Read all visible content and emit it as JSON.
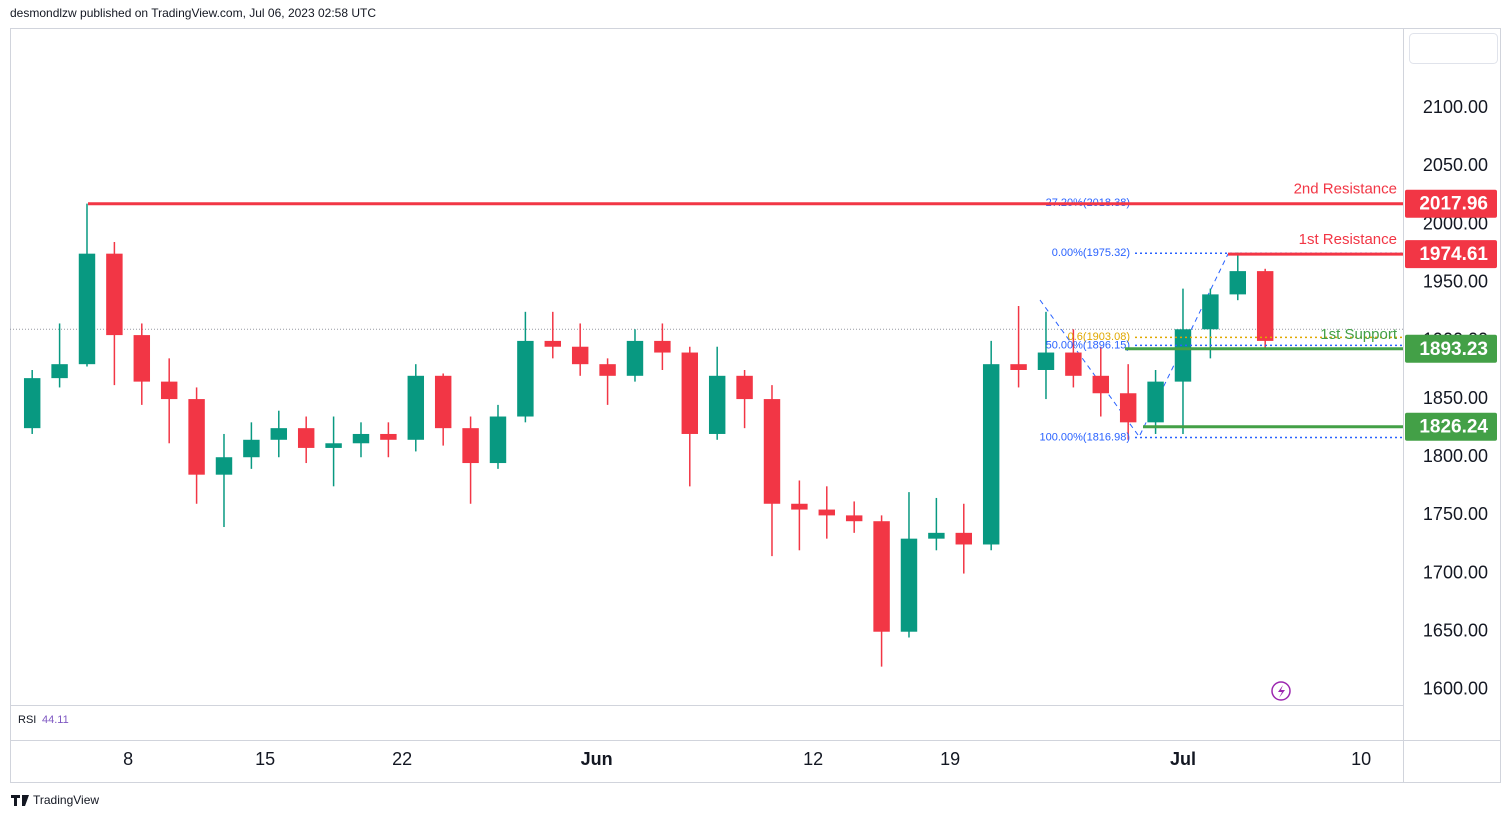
{
  "header": "desmondlzw published on TradingView.com, Jul 06, 2023 02:58 UTC",
  "footer": "TradingView",
  "chart_data": {
    "type": "candlestick",
    "up_color": "#089981",
    "down_color": "#f23645",
    "xlim": [
      -4.31,
      46.53
    ],
    "ylim": [
      1587,
      2169
    ],
    "xticks": [
      {
        "value": 0,
        "label": "8"
      },
      {
        "value": 5,
        "label": "15"
      },
      {
        "value": 10,
        "label": "22"
      },
      {
        "value": 17.1,
        "label": "Jun"
      },
      {
        "value": 25,
        "label": "12"
      },
      {
        "value": 30,
        "label": "19"
      },
      {
        "value": 38.5,
        "label": "Jul"
      },
      {
        "value": 45,
        "label": "10"
      }
    ],
    "yticks": [
      {
        "value": 1600,
        "label": "1600.00"
      },
      {
        "value": 1650,
        "label": "1650.00"
      },
      {
        "value": 1700,
        "label": "1700.00"
      },
      {
        "value": 1750,
        "label": "1750.00"
      },
      {
        "value": 1800,
        "label": "1800.00"
      },
      {
        "value": 1850,
        "label": "1850.00"
      },
      {
        "value": 1900,
        "label": "1900.00"
      },
      {
        "value": 1950,
        "label": "1950.00"
      },
      {
        "value": 2000,
        "label": "2000.00"
      },
      {
        "value": 2050,
        "label": "2050.00"
      },
      {
        "value": 2100,
        "label": "2100.00"
      }
    ],
    "x": [
      -4,
      -3,
      -2,
      -1,
      0,
      1,
      2,
      3,
      4,
      5,
      6,
      7,
      8,
      9,
      10,
      11,
      12,
      13,
      14,
      15,
      16,
      17,
      18,
      19,
      20,
      21,
      22,
      23,
      24,
      25,
      26,
      27,
      28,
      29,
      30,
      31,
      32,
      33,
      34,
      35,
      36,
      37,
      38,
      39,
      40,
      41
    ],
    "open": [
      1825,
      1868,
      1880,
      1975,
      1905,
      1865,
      1850,
      1785,
      1800,
      1815,
      1825,
      1808,
      1812,
      1820,
      1815,
      1870,
      1825,
      1795,
      1835,
      1900,
      1895,
      1880,
      1870,
      1900,
      1890,
      1820,
      1870,
      1850,
      1760,
      1755,
      1750,
      1745,
      1650,
      1730,
      1735,
      1725,
      1880,
      1875,
      1890,
      1870,
      1855,
      1830,
      1865,
      1910,
      1940,
      1960
    ],
    "high": [
      1875,
      1915,
      2018,
      1985,
      1915,
      1885,
      1860,
      1820,
      1830,
      1840,
      1835,
      1835,
      1830,
      1830,
      1880,
      1872,
      1835,
      1845,
      1925,
      1925,
      1915,
      1885,
      1910,
      1915,
      1895,
      1895,
      1875,
      1862,
      1780,
      1775,
      1762,
      1750,
      1770,
      1765,
      1760,
      1900,
      1930,
      1925,
      1910,
      1895,
      1880,
      1875,
      1945,
      1945,
      1976,
      1962
    ],
    "low": [
      1820,
      1860,
      1878,
      1862,
      1845,
      1812,
      1760,
      1740,
      1790,
      1800,
      1795,
      1775,
      1800,
      1800,
      1805,
      1810,
      1760,
      1790,
      1830,
      1885,
      1870,
      1845,
      1865,
      1875,
      1775,
      1815,
      1825,
      1715,
      1720,
      1730,
      1735,
      1620,
      1645,
      1720,
      1700,
      1720,
      1860,
      1850,
      1860,
      1835,
      1815,
      1820,
      1820,
      1885,
      1935,
      1893
    ],
    "close": [
      1868,
      1880,
      1975,
      1905,
      1865,
      1850,
      1785,
      1800,
      1815,
      1825,
      1808,
      1812,
      1820,
      1815,
      1870,
      1825,
      1795,
      1835,
      1900,
      1895,
      1880,
      1870,
      1900,
      1890,
      1820,
      1870,
      1850,
      1760,
      1755,
      1750,
      1745,
      1650,
      1730,
      1735,
      1725,
      1880,
      1875,
      1890,
      1870,
      1855,
      1830,
      1865,
      1910,
      1940,
      1960,
      1900
    ],
    "price_line": 1910,
    "levels": [
      {
        "name": "2nd Resistance",
        "value": 2017.96,
        "color": "#f23645"
      },
      {
        "name": "1st Resistance",
        "value": 1974.61,
        "color": "#f23645"
      },
      {
        "name": "1st Support",
        "value": 1893.23,
        "color": "#43a047"
      },
      {
        "value": 1826.24,
        "color": "#43a047"
      }
    ],
    "fib_levels": [
      {
        "value": 2018.38,
        "label": "27.20%(2018.38)",
        "color": "#2962ff"
      },
      {
        "value": 1975.32,
        "label": "0.00%(1975.32)",
        "color": "#2962ff"
      },
      {
        "value": 1903.08,
        "label": "0.6(1903.08)",
        "color": "#e0a800"
      },
      {
        "value": 1896.15,
        "label": "50.00%(1896.15)",
        "color": "#2962ff"
      },
      {
        "value": 1816.98,
        "label": "100.00%(1816.98)",
        "color": "#2962ff"
      }
    ],
    "indicator": {
      "name": "RSI",
      "value": 44.11
    }
  }
}
